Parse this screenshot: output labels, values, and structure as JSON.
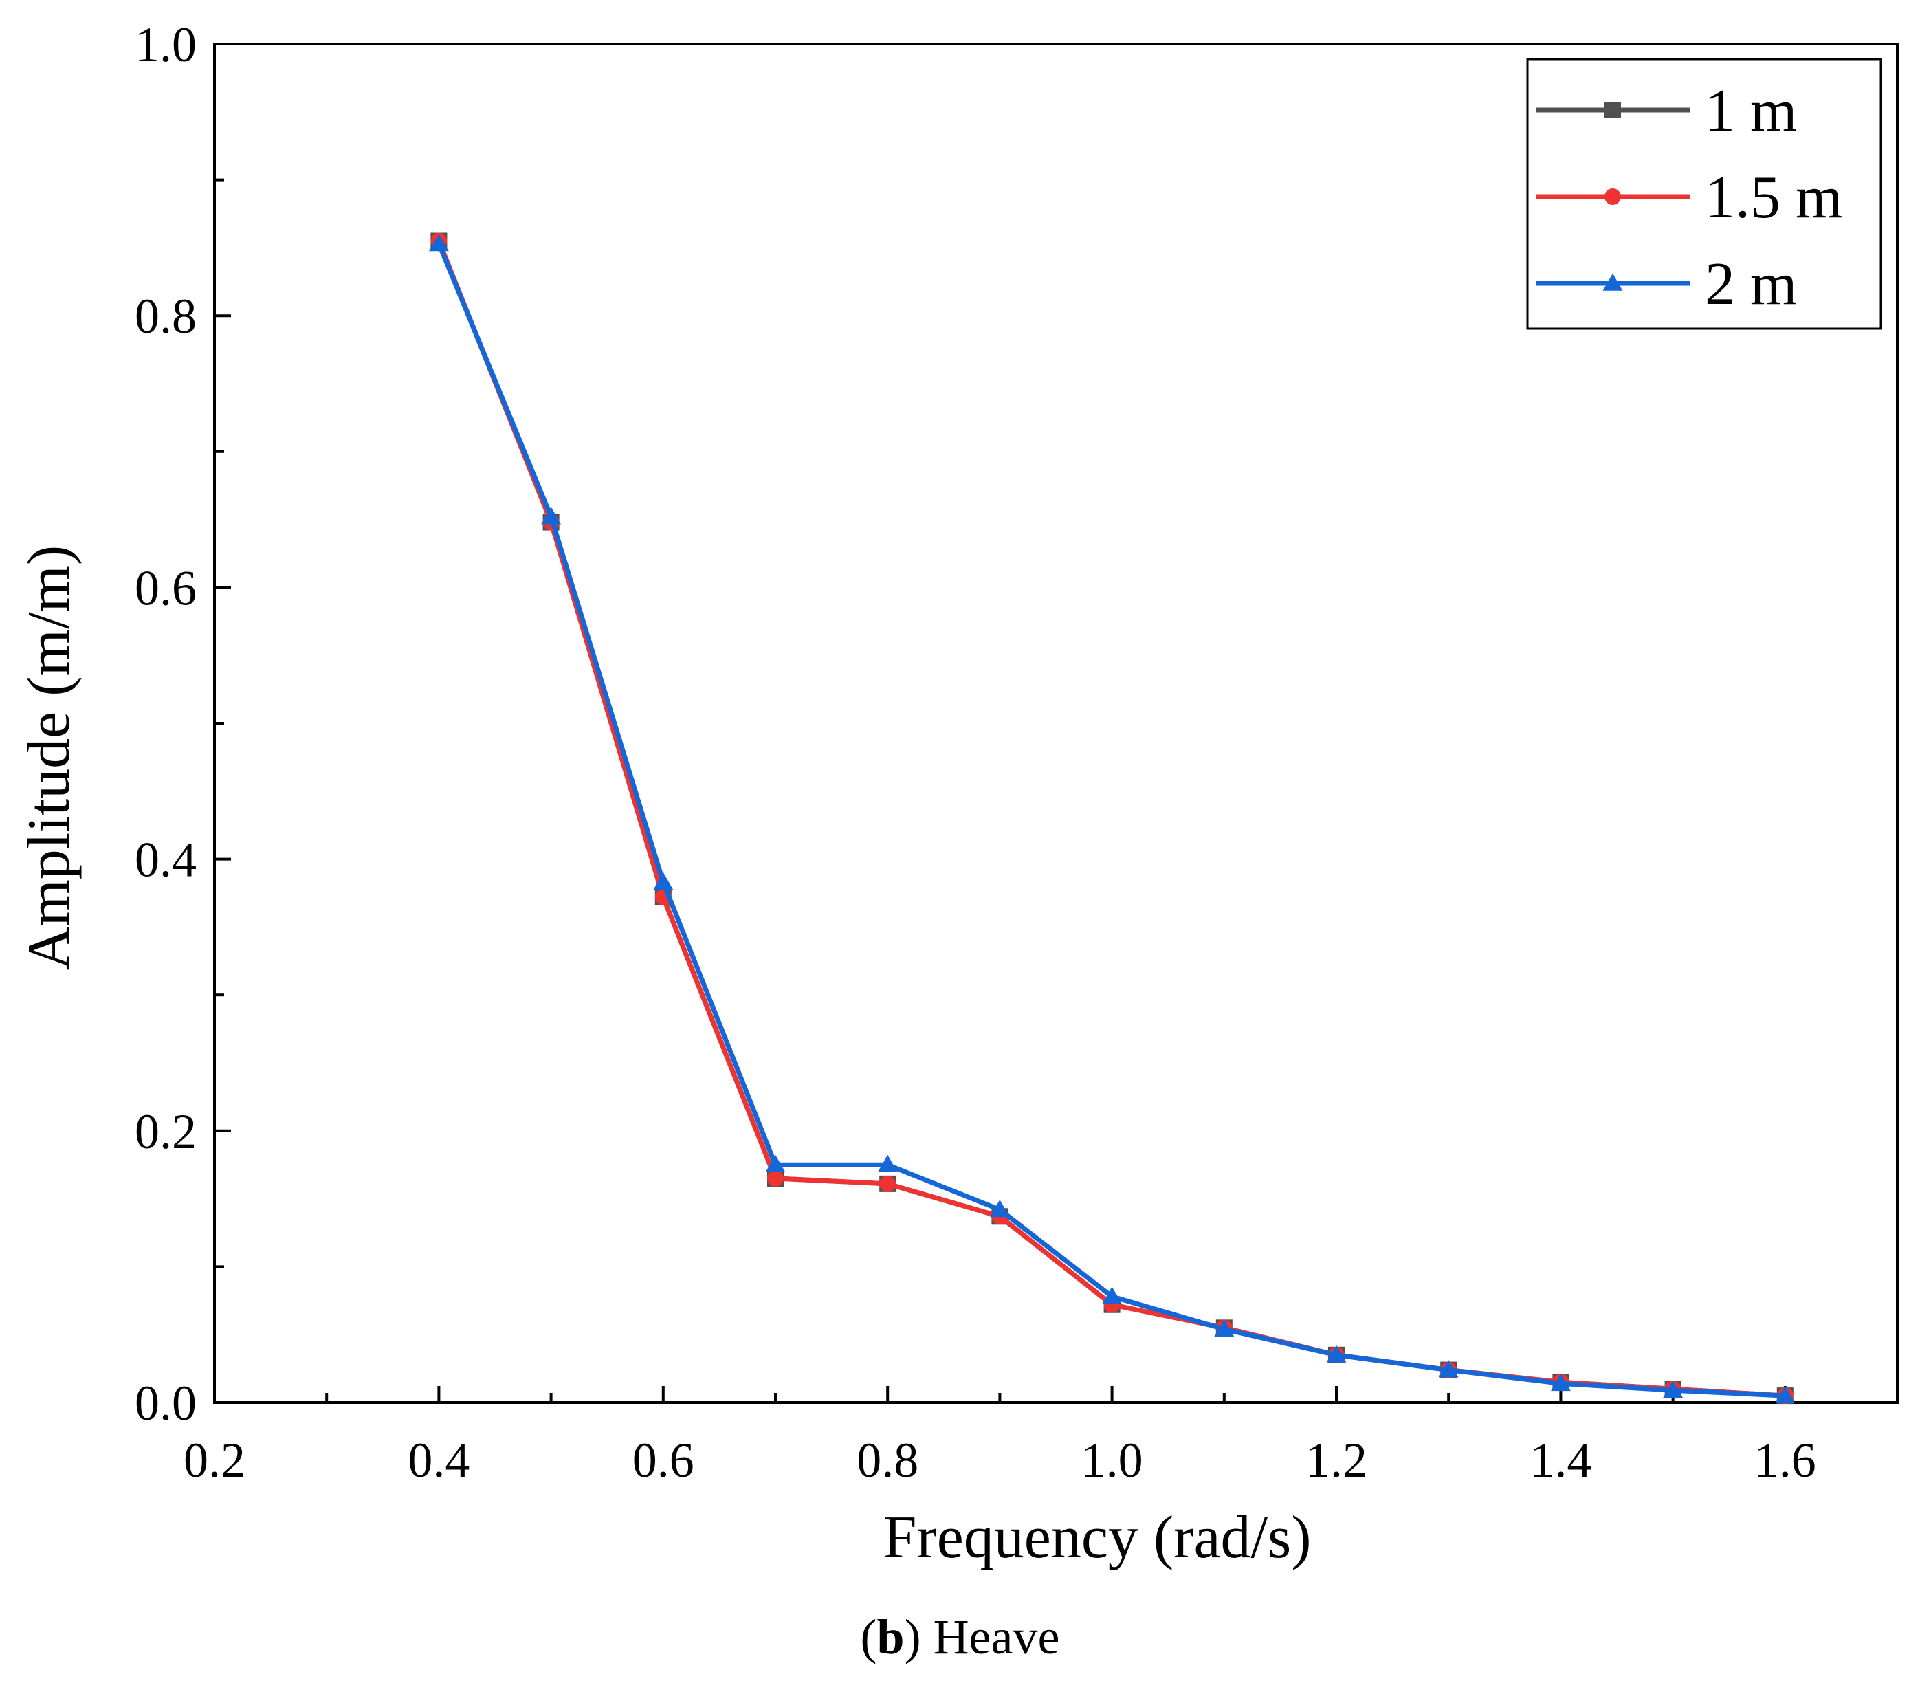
{
  "chart_data": {
    "type": "line",
    "title": "",
    "xlabel": "Frequency (rad/s)",
    "ylabel": "Amplitude (m/m)",
    "xlim": [
      0.2,
      1.7
    ],
    "ylim": [
      0.0,
      1.0
    ],
    "xticks": [
      0.2,
      0.4,
      0.6,
      0.8,
      1.0,
      1.2,
      1.4,
      1.6
    ],
    "xtick_labels": [
      "0.2",
      "0.4",
      "0.6",
      "0.8",
      "1.0",
      "1.2",
      "1.4",
      "1.6"
    ],
    "yticks": [
      0.0,
      0.2,
      0.4,
      0.6,
      0.8,
      1.0
    ],
    "ytick_labels": [
      "0.0",
      "0.2",
      "0.4",
      "0.6",
      "0.8",
      "1.0"
    ],
    "x": [
      0.4,
      0.5,
      0.6,
      0.7,
      0.8,
      0.9,
      1.0,
      1.1,
      1.2,
      1.3,
      1.4,
      1.5,
      1.6
    ],
    "series": [
      {
        "name": "1 m",
        "color": "#505050",
        "marker": "square",
        "values": [
          0.855,
          0.648,
          0.372,
          0.165,
          0.161,
          0.137,
          0.072,
          0.055,
          0.035,
          0.024,
          0.015,
          0.01,
          0.005
        ]
      },
      {
        "name": "1.5 m",
        "color": "#ee3333",
        "marker": "circle",
        "values": [
          0.855,
          0.648,
          0.372,
          0.165,
          0.161,
          0.137,
          0.072,
          0.055,
          0.035,
          0.024,
          0.015,
          0.01,
          0.005
        ]
      },
      {
        "name": "2 m",
        "color": "#1566d6",
        "marker": "triangle",
        "values": [
          0.853,
          0.652,
          0.383,
          0.175,
          0.175,
          0.142,
          0.078,
          0.054,
          0.035,
          0.024,
          0.014,
          0.009,
          0.005
        ]
      }
    ],
    "legend": "top-right",
    "grid": false
  },
  "caption": {
    "label": "b",
    "text": "Heave"
  }
}
